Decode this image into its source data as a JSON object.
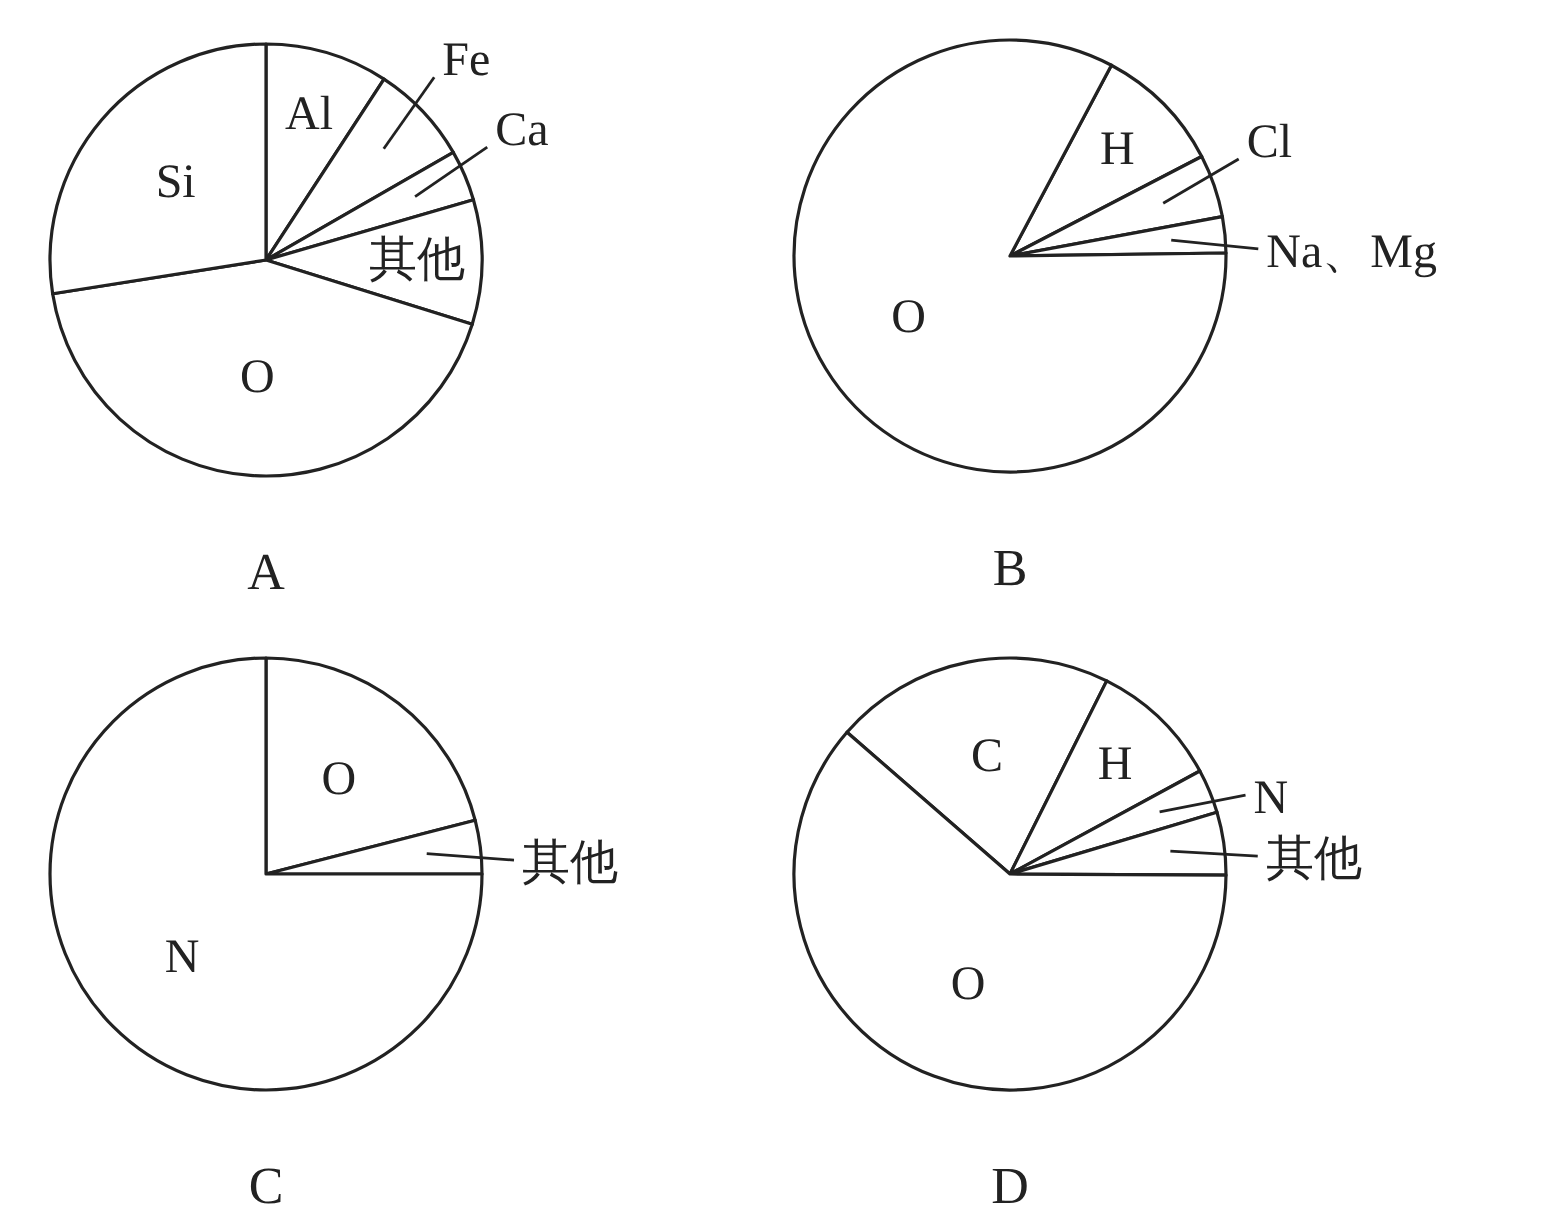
{
  "chart_data": [
    {
      "type": "pie",
      "title": "A",
      "categories": [
        "Al",
        "Fe",
        "Ca",
        "其他",
        "O",
        "Si"
      ],
      "values": [
        9.2,
        7.5,
        3.8,
        9.3,
        42.7,
        27.5
      ],
      "colors": [
        "#ffffff",
        "#ffffff",
        "#ffffff",
        "#ffffff",
        "#ffffff",
        "#ffffff"
      ]
    },
    {
      "type": "pie",
      "title": "B",
      "categories": [
        "H",
        "Cl",
        "Na、Mg",
        "O"
      ],
      "values": [
        9.6,
        4.7,
        2.7,
        83
      ],
      "colors": [
        "#ffffff",
        "#ffffff",
        "#ffffff",
        "#ffffff"
      ]
    },
    {
      "type": "pie",
      "title": "C",
      "categories": [
        "O",
        "其他",
        "N"
      ],
      "values": [
        21,
        4,
        75
      ],
      "colors": [
        "#ffffff",
        "#ffffff",
        "#ffffff"
      ]
    },
    {
      "type": "pie",
      "title": "D",
      "categories": [
        "C",
        "H",
        "N",
        "其他",
        "O"
      ],
      "values": [
        21,
        9.7,
        3.3,
        4.7,
        61.3
      ],
      "colors": [
        "#ffffff",
        "#ffffff",
        "#ffffff",
        "#ffffff",
        "#ffffff"
      ]
    }
  ]
}
